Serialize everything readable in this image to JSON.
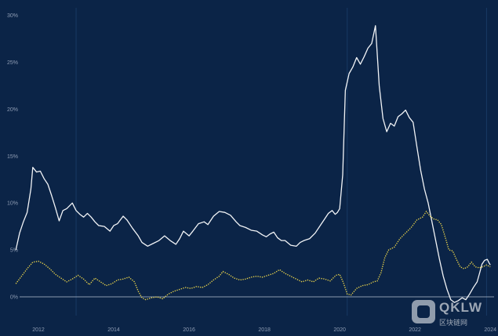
{
  "chart_data": {
    "type": "line",
    "title": "",
    "xlabel": "",
    "ylabel": "",
    "xlim": [
      2011.5,
      2024.1
    ],
    "ylim": [
      -2.0,
      30.8
    ],
    "x_ticks": [
      2012,
      2014,
      2016,
      2018,
      2020,
      2022,
      2024
    ],
    "x_tick_labels": [
      "2012",
      "2014",
      "2016",
      "2018",
      "2020",
      "2022",
      "2024"
    ],
    "y_ticks": [
      0,
      5,
      10,
      15,
      20,
      25,
      30
    ],
    "y_tick_labels": [
      "0%",
      "5%",
      "10%",
      "15%",
      "20%",
      "25%",
      "30%"
    ],
    "grid": false,
    "legend": "none",
    "series": [
      {
        "color": "#f2f4f7",
        "style": "solid",
        "points": [
          [
            2011.4,
            5.0
          ],
          [
            2011.5,
            6.8
          ],
          [
            2011.6,
            8.0
          ],
          [
            2011.7,
            9.0
          ],
          [
            2011.8,
            11.5
          ],
          [
            2011.85,
            13.8
          ],
          [
            2011.95,
            13.3
          ],
          [
            2012.05,
            13.4
          ],
          [
            2012.15,
            12.6
          ],
          [
            2012.25,
            12.0
          ],
          [
            2012.35,
            10.8
          ],
          [
            2012.45,
            9.5
          ],
          [
            2012.55,
            8.1
          ],
          [
            2012.65,
            9.2
          ],
          [
            2012.75,
            9.4
          ],
          [
            2012.9,
            10.0
          ],
          [
            2013.0,
            9.2
          ],
          [
            2013.1,
            8.8
          ],
          [
            2013.2,
            8.5
          ],
          [
            2013.3,
            8.9
          ],
          [
            2013.4,
            8.5
          ],
          [
            2013.5,
            8.0
          ],
          [
            2013.6,
            7.6
          ],
          [
            2013.75,
            7.5
          ],
          [
            2013.9,
            7.0
          ],
          [
            2014.0,
            7.6
          ],
          [
            2014.1,
            7.8
          ],
          [
            2014.25,
            8.6
          ],
          [
            2014.35,
            8.2
          ],
          [
            2014.5,
            7.3
          ],
          [
            2014.65,
            6.5
          ],
          [
            2014.75,
            5.8
          ],
          [
            2014.9,
            5.4
          ],
          [
            2015.05,
            5.7
          ],
          [
            2015.2,
            6.0
          ],
          [
            2015.35,
            6.5
          ],
          [
            2015.5,
            6.0
          ],
          [
            2015.65,
            5.6
          ],
          [
            2015.75,
            6.2
          ],
          [
            2015.85,
            7.0
          ],
          [
            2016.0,
            6.5
          ],
          [
            2016.1,
            7.0
          ],
          [
            2016.25,
            7.8
          ],
          [
            2016.4,
            8.0
          ],
          [
            2016.5,
            7.7
          ],
          [
            2016.65,
            8.6
          ],
          [
            2016.8,
            9.1
          ],
          [
            2016.95,
            9.0
          ],
          [
            2017.1,
            8.7
          ],
          [
            2017.25,
            8.0
          ],
          [
            2017.35,
            7.6
          ],
          [
            2017.5,
            7.4
          ],
          [
            2017.65,
            7.1
          ],
          [
            2017.8,
            7.0
          ],
          [
            2017.95,
            6.6
          ],
          [
            2018.05,
            6.4
          ],
          [
            2018.15,
            6.7
          ],
          [
            2018.25,
            6.9
          ],
          [
            2018.35,
            6.3
          ],
          [
            2018.45,
            6.0
          ],
          [
            2018.55,
            6.0
          ],
          [
            2018.7,
            5.5
          ],
          [
            2018.85,
            5.4
          ],
          [
            2018.95,
            5.8
          ],
          [
            2019.05,
            6.0
          ],
          [
            2019.2,
            6.2
          ],
          [
            2019.35,
            6.8
          ],
          [
            2019.5,
            7.7
          ],
          [
            2019.6,
            8.3
          ],
          [
            2019.7,
            8.9
          ],
          [
            2019.8,
            9.2
          ],
          [
            2019.88,
            8.8
          ],
          [
            2019.94,
            9.0
          ],
          [
            2020.0,
            9.4
          ],
          [
            2020.08,
            13.0
          ],
          [
            2020.15,
            22.0
          ],
          [
            2020.25,
            23.8
          ],
          [
            2020.35,
            24.5
          ],
          [
            2020.45,
            25.5
          ],
          [
            2020.55,
            24.8
          ],
          [
            2020.65,
            25.6
          ],
          [
            2020.75,
            26.5
          ],
          [
            2020.85,
            27.0
          ],
          [
            2020.95,
            28.9
          ],
          [
            2021.05,
            22.5
          ],
          [
            2021.15,
            19.0
          ],
          [
            2021.25,
            17.6
          ],
          [
            2021.35,
            18.5
          ],
          [
            2021.45,
            18.2
          ],
          [
            2021.55,
            19.2
          ],
          [
            2021.65,
            19.5
          ],
          [
            2021.75,
            19.9
          ],
          [
            2021.85,
            19.1
          ],
          [
            2021.95,
            18.6
          ],
          [
            2022.05,
            16.0
          ],
          [
            2022.15,
            13.5
          ],
          [
            2022.25,
            11.5
          ],
          [
            2022.35,
            10.0
          ],
          [
            2022.45,
            8.0
          ],
          [
            2022.55,
            6.0
          ],
          [
            2022.65,
            4.0
          ],
          [
            2022.75,
            2.2
          ],
          [
            2022.85,
            0.8
          ],
          [
            2022.95,
            -0.3
          ],
          [
            2023.05,
            -0.6
          ],
          [
            2023.15,
            -0.4
          ],
          [
            2023.25,
            -0.1
          ],
          [
            2023.35,
            -0.3
          ],
          [
            2023.45,
            0.3
          ],
          [
            2023.55,
            1.0
          ],
          [
            2023.65,
            1.6
          ],
          [
            2023.72,
            2.6
          ],
          [
            2023.78,
            3.5
          ],
          [
            2023.85,
            3.9
          ],
          [
            2023.92,
            4.0
          ],
          [
            2023.97,
            3.6
          ],
          [
            2024.0,
            3.4
          ]
        ]
      },
      {
        "color": "#e9d34b",
        "style": "dotted",
        "points": [
          [
            2011.4,
            1.4
          ],
          [
            2011.55,
            2.2
          ],
          [
            2011.7,
            3.0
          ],
          [
            2011.85,
            3.7
          ],
          [
            2012.0,
            3.8
          ],
          [
            2012.15,
            3.5
          ],
          [
            2012.3,
            3.0
          ],
          [
            2012.45,
            2.4
          ],
          [
            2012.6,
            2.0
          ],
          [
            2012.75,
            1.6
          ],
          [
            2012.9,
            1.9
          ],
          [
            2013.05,
            2.3
          ],
          [
            2013.2,
            1.9
          ],
          [
            2013.35,
            1.3
          ],
          [
            2013.5,
            2.0
          ],
          [
            2013.65,
            1.6
          ],
          [
            2013.8,
            1.2
          ],
          [
            2013.95,
            1.4
          ],
          [
            2014.1,
            1.8
          ],
          [
            2014.25,
            1.9
          ],
          [
            2014.4,
            2.1
          ],
          [
            2014.55,
            1.6
          ],
          [
            2014.65,
            0.6
          ],
          [
            2014.75,
            -0.1
          ],
          [
            2014.85,
            -0.3
          ],
          [
            2015.0,
            -0.1
          ],
          [
            2015.15,
            0.0
          ],
          [
            2015.3,
            -0.2
          ],
          [
            2015.45,
            0.3
          ],
          [
            2015.6,
            0.6
          ],
          [
            2015.75,
            0.8
          ],
          [
            2015.9,
            1.0
          ],
          [
            2016.05,
            0.9
          ],
          [
            2016.2,
            1.1
          ],
          [
            2016.35,
            1.0
          ],
          [
            2016.5,
            1.3
          ],
          [
            2016.65,
            1.8
          ],
          [
            2016.8,
            2.2
          ],
          [
            2016.9,
            2.7
          ],
          [
            2017.05,
            2.4
          ],
          [
            2017.2,
            2.0
          ],
          [
            2017.35,
            1.8
          ],
          [
            2017.5,
            1.9
          ],
          [
            2017.65,
            2.1
          ],
          [
            2017.8,
            2.2
          ],
          [
            2017.95,
            2.1
          ],
          [
            2018.1,
            2.3
          ],
          [
            2018.25,
            2.5
          ],
          [
            2018.4,
            2.9
          ],
          [
            2018.55,
            2.5
          ],
          [
            2018.7,
            2.2
          ],
          [
            2018.85,
            1.9
          ],
          [
            2019.0,
            1.6
          ],
          [
            2019.15,
            1.8
          ],
          [
            2019.3,
            1.6
          ],
          [
            2019.45,
            2.0
          ],
          [
            2019.6,
            1.9
          ],
          [
            2019.75,
            1.7
          ],
          [
            2019.9,
            2.3
          ],
          [
            2020.0,
            2.4
          ],
          [
            2020.1,
            1.5
          ],
          [
            2020.2,
            0.3
          ],
          [
            2020.3,
            0.2
          ],
          [
            2020.45,
            0.9
          ],
          [
            2020.6,
            1.2
          ],
          [
            2020.75,
            1.3
          ],
          [
            2020.9,
            1.6
          ],
          [
            2021.0,
            1.7
          ],
          [
            2021.1,
            2.6
          ],
          [
            2021.2,
            4.2
          ],
          [
            2021.3,
            5.0
          ],
          [
            2021.45,
            5.3
          ],
          [
            2021.6,
            6.2
          ],
          [
            2021.75,
            6.8
          ],
          [
            2021.9,
            7.4
          ],
          [
            2022.05,
            8.2
          ],
          [
            2022.2,
            8.5
          ],
          [
            2022.3,
            9.1
          ],
          [
            2022.4,
            8.6
          ],
          [
            2022.5,
            8.3
          ],
          [
            2022.6,
            8.2
          ],
          [
            2022.7,
            7.7
          ],
          [
            2022.8,
            6.4
          ],
          [
            2022.9,
            5.0
          ],
          [
            2023.0,
            4.9
          ],
          [
            2023.1,
            4.0
          ],
          [
            2023.2,
            3.2
          ],
          [
            2023.3,
            3.0
          ],
          [
            2023.4,
            3.2
          ],
          [
            2023.5,
            3.7
          ],
          [
            2023.6,
            3.2
          ],
          [
            2023.7,
            3.1
          ],
          [
            2023.8,
            3.2
          ],
          [
            2023.9,
            3.4
          ],
          [
            2024.0,
            3.2
          ]
        ]
      }
    ]
  },
  "watermark": {
    "brand": "QKLW",
    "subtitle": "区块链网"
  }
}
